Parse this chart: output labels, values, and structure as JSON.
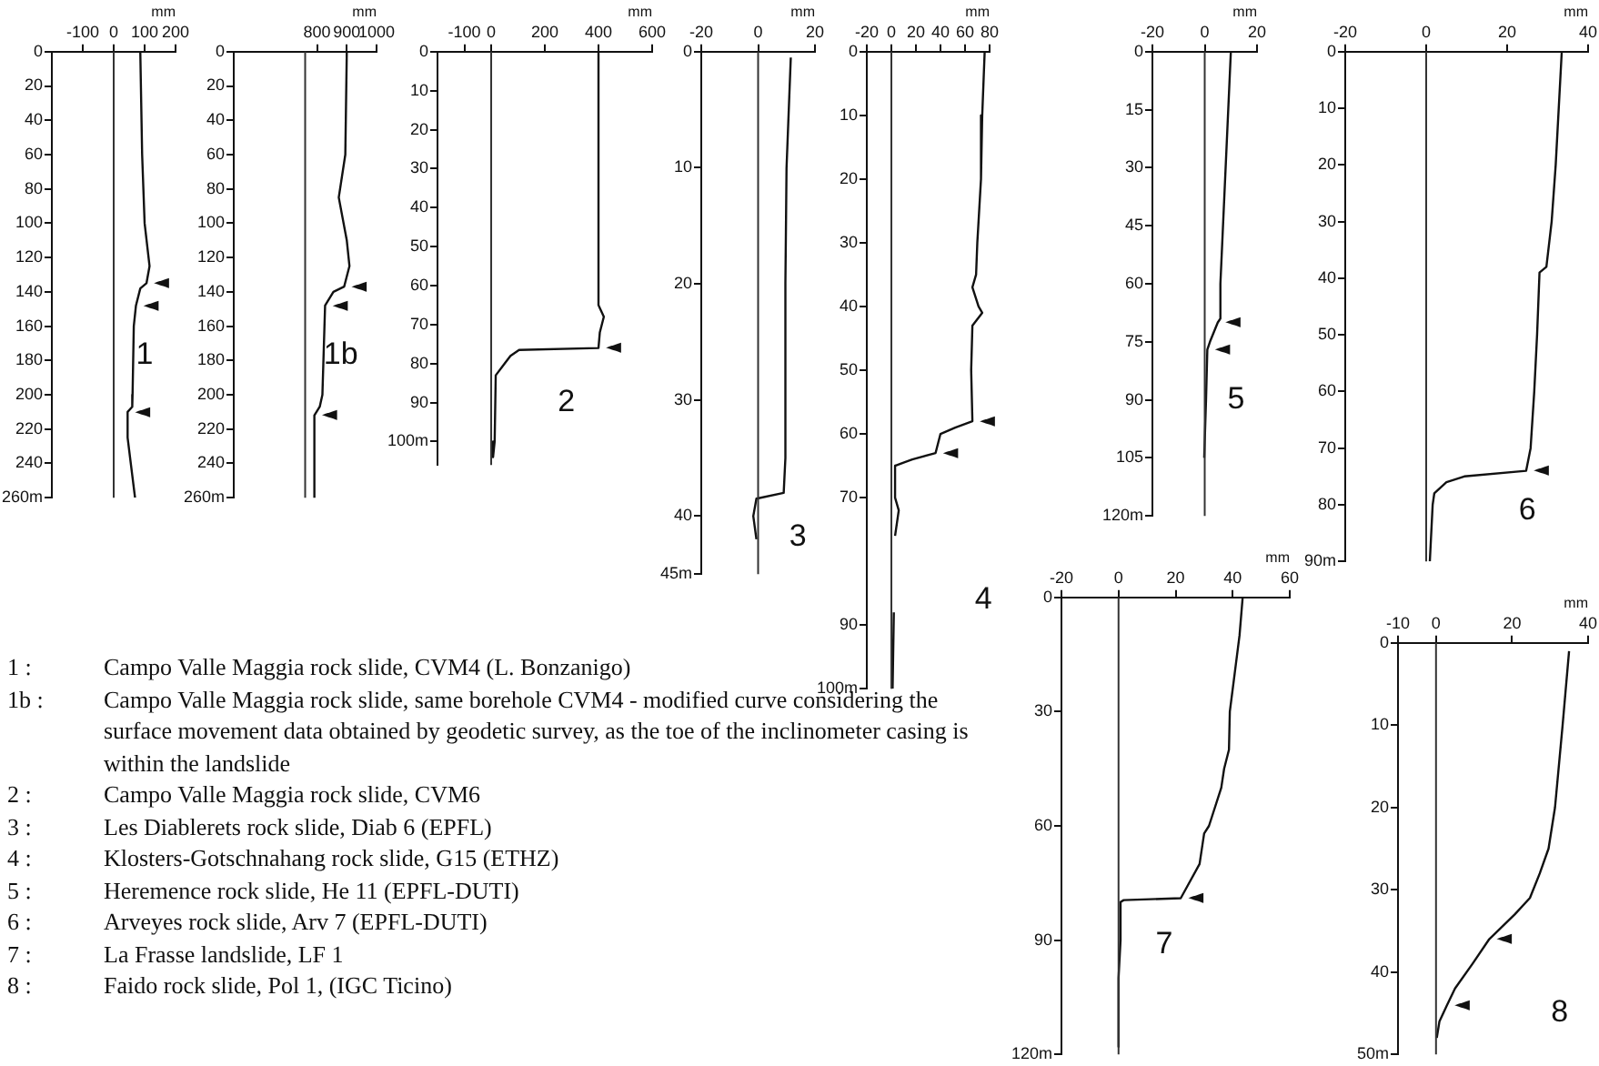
{
  "chart_data": [
    {
      "type": "line",
      "title": "1",
      "xlabel": "mm",
      "color": "#111111",
      "xlim": [
        -200,
        200
      ],
      "xticks": [
        -100,
        0,
        100,
        200
      ],
      "ylim": [
        260,
        0
      ],
      "yticks": [
        0,
        20,
        40,
        60,
        80,
        100,
        120,
        140,
        160,
        180,
        200,
        220,
        240,
        {
          "value": 260,
          "label": "260m"
        }
      ],
      "grid": false,
      "ref_lines": [
        {
          "axis": "x",
          "value": 0
        }
      ],
      "x": [
        86,
        92,
        100,
        116,
        106,
        86,
        72,
        65,
        61,
        60,
        45,
        45,
        69
      ],
      "values": [
        0,
        60,
        100,
        125,
        135,
        138,
        148,
        160,
        200,
        207,
        210,
        225,
        260
      ],
      "annotations": [
        {
          "text": "◄",
          "x": 106,
          "y": 135
        },
        {
          "text": "◄",
          "x": 72,
          "y": 148
        },
        {
          "text": "◄",
          "x": 45,
          "y": 210
        },
        "1 : Campo Valle Maggia rock slide, CVM4 (L. Bonzanigo)",
        "1b : Campo Valle Maggia rock slide, same borehole CVM4 - modified curve considering the surface movement data obtained by geodetic survey, as the toe of the inclinometer casing is within the landslide",
        "2 : Campo Valle Maggia rock slide, CVM6",
        "3 : Les Diablerets rock slide, Diab 6 (EPFL)",
        "4 : Klosters-Gotschnahang rock slide, G15 (ETHZ)",
        "5 : Heremence rock slide, He 11 (EPFL-DUTI)",
        "6 : Arveyes rock slide, Arv 7 (EPFL-DUTI)",
        "7 : La Frasse landslide, LF 1",
        "8 : Faido rock slide, Pol 1, (IGC Ticino)"
      ]
    },
    {
      "type": "line",
      "title": "1b",
      "xlabel": "mm",
      "color": "#111111",
      "xlim": [
        520,
        1000
      ],
      "xticks": [
        800,
        900,
        1000
      ],
      "ylim": [
        260,
        0
      ],
      "yticks": [
        0,
        20,
        40,
        60,
        80,
        100,
        120,
        140,
        160,
        180,
        200,
        220,
        240,
        {
          "value": 260,
          "label": "260m"
        }
      ],
      "grid": false,
      "ref_lines": [
        {
          "axis": "x",
          "value": 760
        }
      ],
      "x": [
        900,
        895,
        873,
        900,
        909,
        891,
        855,
        827,
        818,
        809,
        791,
        791
      ],
      "values": [
        0,
        60,
        85,
        110,
        125,
        137,
        140,
        148,
        200,
        207,
        212,
        260
      ],
      "annotations": [
        {
          "text": "◄",
          "x": 891,
          "y": 137
        },
        {
          "text": "◄",
          "x": 827,
          "y": 148
        },
        {
          "text": "◄",
          "x": 791,
          "y": 212
        }
      ]
    },
    {
      "type": "line",
      "title": "2",
      "xlabel": "mm",
      "color": "#111111",
      "xlim": [
        -200,
        600
      ],
      "xticks": [
        -100,
        0,
        200,
        400,
        600
      ],
      "ylim": [
        106,
        0
      ],
      "yticks": [
        0,
        10,
        20,
        30,
        40,
        50,
        60,
        70,
        80,
        90,
        {
          "value": 100,
          "label": "100m"
        }
      ],
      "grid": false,
      "ref_lines": [
        {
          "axis": "x",
          "value": 0
        }
      ],
      "x": [
        400,
        400,
        420,
        405,
        400,
        104,
        72,
        50,
        17,
        13,
        7
      ],
      "values": [
        0,
        65,
        68,
        72,
        76,
        76.5,
        78,
        80,
        83,
        100,
        104
      ],
      "annotations": [
        {
          "text": "◄",
          "x": 400,
          "y": 76
        }
      ]
    },
    {
      "type": "line",
      "title": "3",
      "xlabel": "mm",
      "color": "#111111",
      "xlim": [
        -20,
        20
      ],
      "xticks": [
        -20,
        0,
        20
      ],
      "ylim": [
        45,
        0
      ],
      "yticks": [
        0,
        10,
        20,
        30,
        40,
        {
          "value": 45,
          "label": "45m"
        }
      ],
      "grid": false,
      "ref_lines": [
        {
          "axis": "x",
          "value": 0
        }
      ],
      "x": [
        11.5,
        10,
        9.6,
        9.6,
        9,
        -0.6,
        -1.7,
        -0.6
      ],
      "values": [
        0.5,
        10,
        20,
        35,
        38,
        38.5,
        40,
        42
      ]
    },
    {
      "type": "line",
      "title": "4",
      "xlabel": "mm",
      "color": "#111111",
      "xlim": [
        -20,
        80
      ],
      "xticks": [
        -20,
        0,
        20,
        40,
        60,
        80
      ],
      "ylim": [
        100,
        0
      ],
      "yticks": [
        0,
        10,
        20,
        30,
        40,
        50,
        60,
        70,
        90,
        {
          "value": 100,
          "label": "100m"
        }
      ],
      "grid": false,
      "ref_lines": [
        {
          "axis": "x",
          "value": 0
        }
      ],
      "x": [
        76,
        74,
        73,
        70,
        69,
        66,
        71,
        74,
        66,
        65,
        66,
        52,
        40,
        36,
        17,
        3,
        3,
        6,
        3,
        null,
        2,
        1
      ],
      "values": [
        0,
        10,
        20,
        30,
        35,
        37,
        40,
        41,
        43,
        50,
        58,
        59,
        60,
        63,
        64,
        65,
        70,
        72,
        76,
        null,
        88,
        100
      ],
      "annotations": [
        {
          "text": "◄",
          "x": 66,
          "y": 58
        },
        {
          "text": "◄",
          "x": 36,
          "y": 63
        }
      ]
    },
    {
      "type": "line",
      "title": "5",
      "xlabel": "mm",
      "color": "#111111",
      "xlim": [
        -20,
        20
      ],
      "xticks": [
        -20,
        0,
        20
      ],
      "ylim": [
        120,
        0
      ],
      "yticks": [
        0,
        15,
        30,
        45,
        60,
        75,
        90,
        105,
        {
          "value": 120,
          "label": "120m"
        }
      ],
      "grid": false,
      "ref_lines": [
        {
          "axis": "x",
          "value": 0
        }
      ],
      "x": [
        10,
        8,
        6,
        6,
        5,
        2,
        1,
        0.5,
        -0.2
      ],
      "values": [
        0,
        30,
        60,
        69,
        70,
        75,
        77,
        90,
        105
      ],
      "annotations": [
        {
          "text": "◄",
          "x": 5,
          "y": 70
        },
        {
          "text": "◄",
          "x": 1,
          "y": 77
        }
      ]
    },
    {
      "type": "line",
      "title": "6",
      "xlabel": "mm",
      "color": "#111111",
      "xlim": [
        -20,
        40
      ],
      "xticks": [
        -20,
        0,
        20,
        40
      ],
      "ylim": [
        90,
        0
      ],
      "yticks": [
        0,
        10,
        20,
        30,
        40,
        50,
        60,
        70,
        80,
        {
          "value": 90,
          "label": "90m"
        }
      ],
      "grid": false,
      "ref_lines": [
        {
          "axis": "x",
          "value": 0
        }
      ],
      "x": [
        33.5,
        32,
        31,
        29.7,
        28,
        27.4,
        26.7,
        25.8,
        24.7,
        9.4,
        5,
        2,
        1.6,
        0.9
      ],
      "values": [
        0,
        20,
        30,
        38,
        39,
        50,
        60,
        70,
        74,
        75,
        76,
        78,
        80,
        90
      ],
      "annotations": [
        {
          "text": "◄",
          "x": 24.7,
          "y": 74
        }
      ]
    },
    {
      "type": "line",
      "title": "7",
      "xlabel": "mm",
      "color": "#111111",
      "xlim": [
        -20,
        60
      ],
      "xticks": [
        -20,
        0,
        20,
        40,
        60
      ],
      "ylim": [
        120,
        0
      ],
      "yticks": [
        0,
        30,
        60,
        90,
        {
          "value": 120,
          "label": "120m"
        }
      ],
      "grid": false,
      "ref_lines": [
        {
          "axis": "x",
          "value": 0
        }
      ],
      "x": [
        43.5,
        42.4,
        40.7,
        39,
        38.7,
        37,
        36,
        31.7,
        30,
        28.4,
        24,
        21.8,
        1.8,
        0.7,
        0.7,
        0,
        0
      ],
      "values": [
        0,
        10,
        20,
        30,
        40,
        45,
        50,
        60,
        62,
        70,
        76,
        79,
        79.5,
        80,
        90,
        100,
        118
      ],
      "annotations": [
        {
          "text": "◄",
          "x": 21.8,
          "y": 79
        }
      ]
    },
    {
      "type": "line",
      "title": "8",
      "xlabel": "mm",
      "color": "#111111",
      "xlim": [
        -10,
        40
      ],
      "xticks": [
        -10,
        0,
        20,
        40
      ],
      "ylim": [
        50,
        0
      ],
      "yticks": [
        0,
        10,
        20,
        30,
        40,
        {
          "value": 50,
          "label": "50m"
        }
      ],
      "grid": false,
      "ref_lines": [
        {
          "axis": "x",
          "value": 0
        }
      ],
      "x": [
        35,
        33.3,
        31.3,
        29.6,
        27.3,
        24.7,
        20.7,
        14,
        9.6,
        5,
        2.9,
        0.9,
        0.2
      ],
      "values": [
        1,
        10,
        20,
        25,
        28,
        31,
        33,
        36,
        39,
        42,
        44,
        46,
        48
      ],
      "annotations": [
        {
          "text": "◄",
          "x": 14,
          "y": 36
        },
        {
          "text": "◄",
          "x": 2.9,
          "y": 44
        }
      ]
    }
  ]
}
